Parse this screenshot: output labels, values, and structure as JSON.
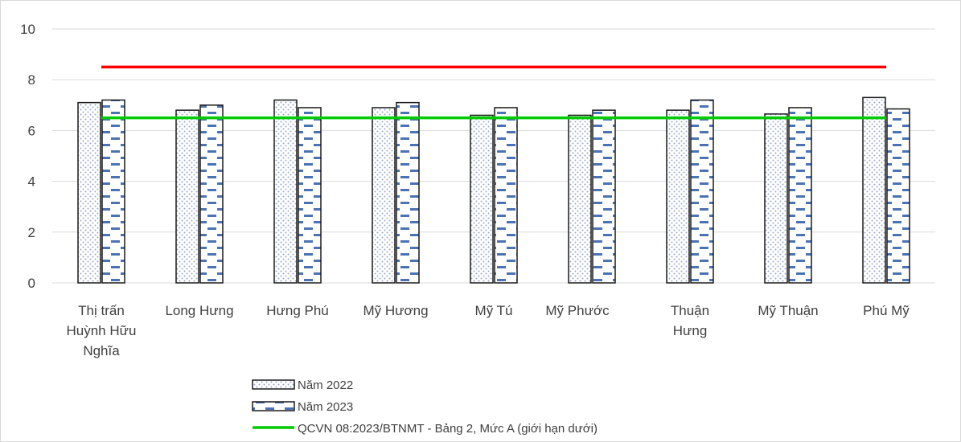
{
  "chart_data": {
    "type": "bar",
    "categories": [
      [
        "Thị trấn",
        "Huỳnh Hữu",
        "Nghĩa"
      ],
      [
        "Long Hưng"
      ],
      [
        "Hưng Phú"
      ],
      [
        "Mỹ  Hương"
      ],
      [
        "Mỹ Tú"
      ],
      [
        "Mỹ Phước"
      ],
      [
        "Thuận",
        "Hưng"
      ],
      [
        "Mỹ  Thuận"
      ],
      [
        "Phú Mỹ"
      ]
    ],
    "series": [
      {
        "name": "Năm 2022",
        "values": [
          7.1,
          6.8,
          7.2,
          6.9,
          6.6,
          6.6,
          6.8,
          6.65,
          7.3
        ]
      },
      {
        "name": "Năm 2023",
        "values": [
          7.2,
          7.0,
          6.9,
          7.1,
          6.9,
          6.8,
          7.2,
          6.9,
          6.85
        ]
      }
    ],
    "reference_lines": [
      {
        "name": "",
        "value": 8.5,
        "color": "#ff0000"
      },
      {
        "name": "QCVN 08:2023/BTNMT  - Bảng 2, Mức  A (giới hạn dưới)",
        "value": 6.5,
        "color": "#00cc00"
      }
    ],
    "yticks": [
      "0",
      "2",
      "4",
      "6",
      "8",
      "10"
    ],
    "ylim": [
      0,
      10
    ],
    "grid": true,
    "legend_position": "bottom"
  }
}
